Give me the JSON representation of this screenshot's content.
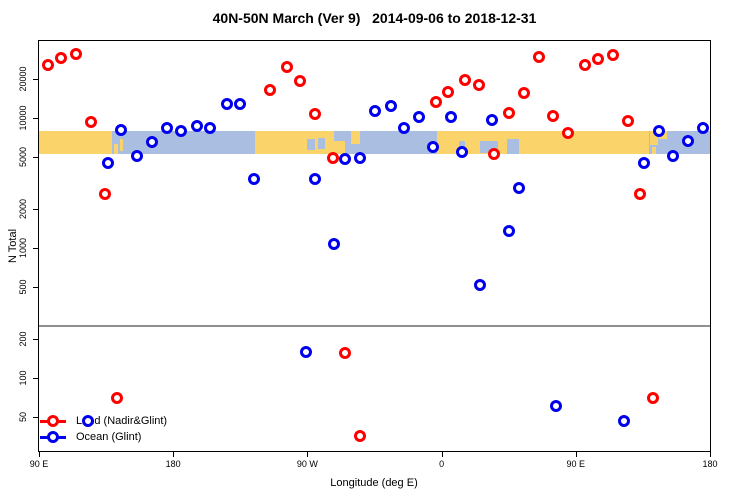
{
  "title": "40N-50N March (Ver 9)   2014-09-06 to 2018-12-31",
  "chart_data": {
    "type": "scatter",
    "title": "40N-50N March (Ver 9)   2014-09-06 to 2018-12-31",
    "xlabel": "Longitude (deg E)",
    "ylabel": "N Total",
    "x_axis": {
      "min": 90,
      "max": 540,
      "ticks": [
        {
          "value": 90,
          "label": "90 E"
        },
        {
          "value": 180,
          "label": "180"
        },
        {
          "value": 270,
          "label": "90 W"
        },
        {
          "value": 360,
          "label": "0"
        },
        {
          "value": 450,
          "label": "90 E"
        },
        {
          "value": 540,
          "label": "180"
        }
      ]
    },
    "y_axis": {
      "scale": "log",
      "min": 27.5,
      "max": 39000,
      "ticks": [
        {
          "value": 50,
          "label": "50"
        },
        {
          "value": 100,
          "label": "100"
        },
        {
          "value": 200,
          "label": "200"
        },
        {
          "value": 500,
          "label": "500"
        },
        {
          "value": 1000,
          "label": "1000"
        },
        {
          "value": 2000,
          "label": "2000"
        },
        {
          "value": 5000,
          "label": "5000"
        },
        {
          "value": 10000,
          "label": "10000"
        },
        {
          "value": 20000,
          "label": "20000"
        }
      ]
    },
    "reference_line": {
      "value": 250,
      "color": "#8f8f8f"
    },
    "map_strip": {
      "value_top": 7900,
      "value_bottom": 5300,
      "land_color": "#FBD36B",
      "ocean_color": "#A9BEE0",
      "segments": [
        {
          "from": 90,
          "to": 139,
          "kind": "land",
          "t": 0,
          "b": 1
        },
        {
          "from": 140.5,
          "to": 143,
          "kind": "land",
          "t": 0.55,
          "b": 1
        },
        {
          "from": 144,
          "to": 146.5,
          "kind": "land",
          "t": 0.35,
          "b": 0.9
        },
        {
          "from": 235,
          "to": 295,
          "kind": "land",
          "t": 0,
          "b": 1
        },
        {
          "from": 270,
          "to": 275,
          "kind": "ocean",
          "t": 0.35,
          "b": 0.85
        },
        {
          "from": 277,
          "to": 282,
          "kind": "ocean",
          "t": 0.3,
          "b": 0.8
        },
        {
          "from": 288,
          "to": 295,
          "kind": "ocean",
          "t": 0,
          "b": 0.45
        },
        {
          "from": 299,
          "to": 305,
          "kind": "land",
          "t": 0,
          "b": 0.55
        },
        {
          "from": 357,
          "to": 499,
          "kind": "land",
          "t": 0,
          "b": 1
        },
        {
          "from": 372,
          "to": 375.5,
          "kind": "ocean",
          "t": 0.45,
          "b": 1
        },
        {
          "from": 386,
          "to": 398,
          "kind": "ocean",
          "t": 0.45,
          "b": 0.95
        },
        {
          "from": 404,
          "to": 412,
          "kind": "ocean",
          "t": 0.35,
          "b": 1
        },
        {
          "from": 500,
          "to": 505,
          "kind": "land",
          "t": 0,
          "b": 0.6
        },
        {
          "from": 506,
          "to": 511,
          "kind": "land",
          "t": 0,
          "b": 0.35
        },
        {
          "from": 501,
          "to": 504,
          "kind": "land",
          "t": 0.7,
          "b": 1
        }
      ]
    },
    "legend_position": "bottom-left",
    "series": [
      {
        "name": "Land (Nadir&Glint)",
        "color": "#ff0000",
        "points": [
          [
            96,
            25600
          ],
          [
            105,
            29000
          ],
          [
            115,
            31000
          ],
          [
            125,
            9300
          ],
          [
            134,
            2600
          ],
          [
            142,
            70
          ],
          [
            245,
            16500
          ],
          [
            256,
            24700
          ],
          [
            265,
            19300
          ],
          [
            275,
            10800
          ],
          [
            287,
            4900
          ],
          [
            295,
            155
          ],
          [
            305,
            36
          ],
          [
            356,
            13300
          ],
          [
            364,
            15900
          ],
          [
            376,
            19700
          ],
          [
            385,
            18000
          ],
          [
            395,
            5300
          ],
          [
            405,
            11000
          ],
          [
            415,
            15400
          ],
          [
            425,
            29500
          ],
          [
            435,
            10400
          ],
          [
            445,
            7600
          ],
          [
            456,
            25600
          ],
          [
            465,
            28400
          ],
          [
            475,
            30500
          ],
          [
            485,
            9400
          ],
          [
            493,
            2600
          ],
          [
            502,
            70
          ]
        ]
      },
      {
        "name": "Ocean (Glint)",
        "color": "#0000ee",
        "points": [
          [
            123,
            47
          ],
          [
            136,
            4500
          ],
          [
            145,
            8000
          ],
          [
            156,
            5100
          ],
          [
            166,
            6500
          ],
          [
            176,
            8400
          ],
          [
            185,
            7900
          ],
          [
            196,
            8700
          ],
          [
            205,
            8400
          ],
          [
            216,
            12900
          ],
          [
            225,
            12900
          ],
          [
            234,
            3400
          ],
          [
            269,
            160
          ],
          [
            275,
            3400
          ],
          [
            288,
            1070
          ],
          [
            295,
            4800
          ],
          [
            305,
            4900
          ],
          [
            315,
            11200
          ],
          [
            326,
            12400
          ],
          [
            335,
            8400
          ],
          [
            345,
            10200
          ],
          [
            354,
            6000
          ],
          [
            366,
            10200
          ],
          [
            374,
            5500
          ],
          [
            386,
            520
          ],
          [
            394,
            9700
          ],
          [
            405,
            1350
          ],
          [
            412,
            2900
          ],
          [
            437,
            61
          ],
          [
            482,
            47
          ],
          [
            496,
            4500
          ],
          [
            506,
            7900
          ],
          [
            515,
            5100
          ],
          [
            525,
            6600
          ],
          [
            535,
            8400
          ]
        ]
      }
    ]
  }
}
